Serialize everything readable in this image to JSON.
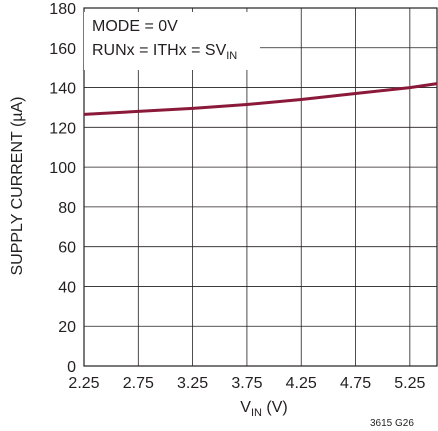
{
  "chart_data": {
    "type": "line",
    "title": "",
    "xlabel": "V_IN (V)",
    "ylabel": "SUPPLY CURRENT (µA)",
    "xlim": [
      2.25,
      5.5
    ],
    "ylim": [
      0,
      180
    ],
    "x_ticks": [
      2.25,
      2.75,
      3.25,
      3.75,
      4.25,
      4.75,
      5.25
    ],
    "x_tick_labels": [
      "2.25",
      "2.75",
      "3.25",
      "3.75",
      "4.25",
      "4.75",
      "5.25"
    ],
    "y_ticks": [
      0,
      20,
      40,
      60,
      80,
      100,
      120,
      140,
      160,
      180
    ],
    "y_tick_labels": [
      "0",
      "20",
      "40",
      "60",
      "80",
      "100",
      "120",
      "140",
      "160",
      "180"
    ],
    "grid": true,
    "annotations": [
      "MODE = 0V",
      "RUNx = ITHx = SV_IN"
    ],
    "series": [
      {
        "color": "#8b1a3a",
        "x": [
          2.25,
          2.75,
          3.25,
          3.75,
          4.25,
          4.75,
          5.25,
          5.5
        ],
        "y": [
          126.5,
          128,
          129.5,
          131.5,
          134,
          137,
          140,
          142
        ]
      }
    ],
    "figure_id": "3615 G26"
  }
}
